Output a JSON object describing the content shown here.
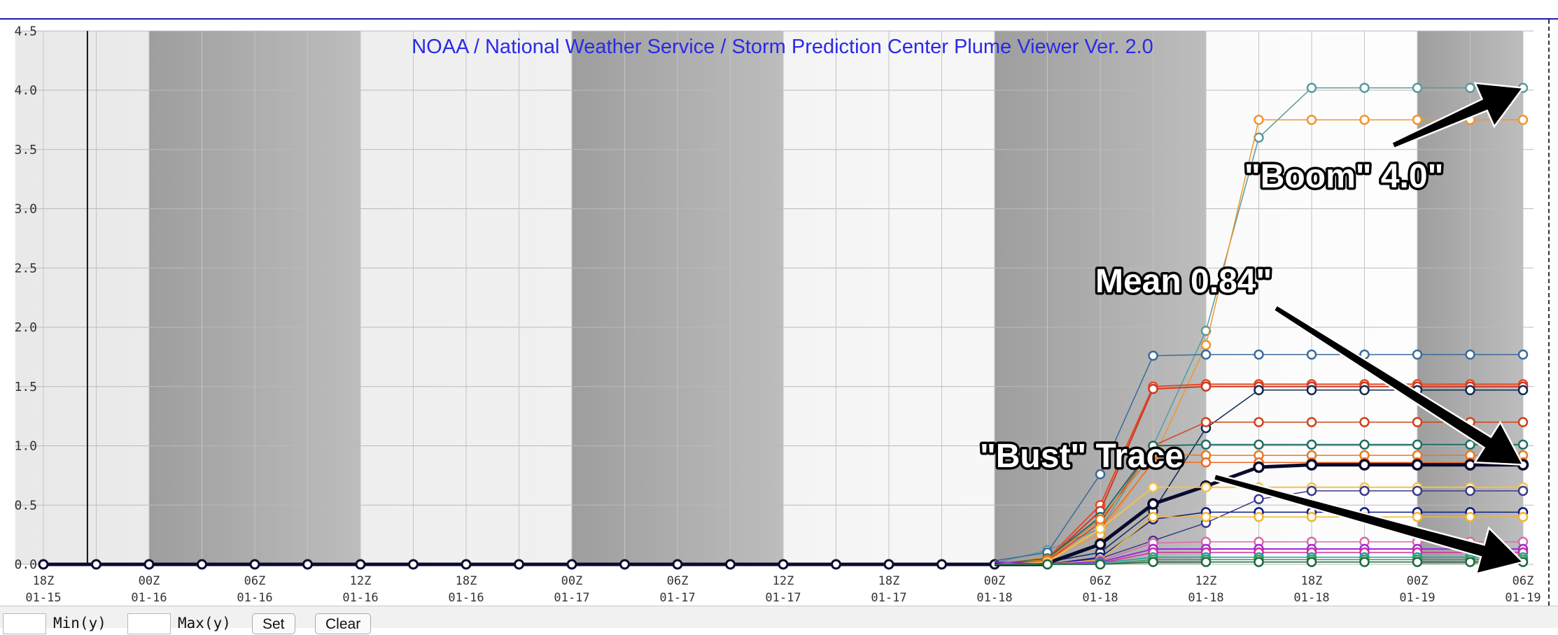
{
  "chart_data": {
    "type": "line",
    "title": "NOAA / National Weather Service / Storm Prediction Center Plume Viewer Ver. 2.0",
    "ylim": [
      0,
      4.5
    ],
    "y_ticks": [
      "0.0",
      "0.5",
      "1.0",
      "1.5",
      "2.0",
      "2.5",
      "3.0",
      "3.5",
      "4.0",
      "4.5"
    ],
    "x_ticks": [
      {
        "hour": "18Z",
        "date": "01-15"
      },
      {
        "hour": "00Z",
        "date": "01-16"
      },
      {
        "hour": "06Z",
        "date": "01-16"
      },
      {
        "hour": "12Z",
        "date": "01-16"
      },
      {
        "hour": "18Z",
        "date": "01-16"
      },
      {
        "hour": "00Z",
        "date": "01-17"
      },
      {
        "hour": "06Z",
        "date": "01-17"
      },
      {
        "hour": "12Z",
        "date": "01-17"
      },
      {
        "hour": "18Z",
        "date": "01-17"
      },
      {
        "hour": "00Z",
        "date": "01-18"
      },
      {
        "hour": "06Z",
        "date": "01-18"
      },
      {
        "hour": "12Z",
        "date": "01-18"
      },
      {
        "hour": "18Z",
        "date": "01-18"
      },
      {
        "hour": "00Z",
        "date": "01-19"
      },
      {
        "hour": "06Z",
        "date": "01-19"
      }
    ],
    "x_note": "values are hours after 18Z 01-15 (3-hourly)",
    "night_shading_hours": [
      [
        6,
        18
      ],
      [
        30,
        42
      ],
      [
        54,
        66
      ],
      [
        78,
        84
      ]
    ],
    "current_time_hour": 2.5,
    "grid": true,
    "series": [
      {
        "color": "#5a9a9a",
        "width": 1.5,
        "values": [
          0.01,
          0.12,
          0.3,
          1.0,
          1.97,
          3.6,
          4.02,
          4.02,
          4.02
        ]
      },
      {
        "color": "#f0962e",
        "width": 1.5,
        "values": [
          0.0,
          0.06,
          0.25,
          0.88,
          1.85,
          3.75,
          3.75,
          3.75,
          3.75
        ]
      },
      {
        "color": "#3a6a9c",
        "width": 1.5,
        "values": [
          0.03,
          0.1,
          0.76,
          1.76,
          1.77,
          1.77,
          1.77,
          1.77,
          1.77
        ]
      },
      {
        "color": "#e84a1e",
        "width": 2,
        "values": [
          0.0,
          0.05,
          0.5,
          1.5,
          1.52,
          1.52,
          1.52,
          1.52,
          1.52
        ]
      },
      {
        "color": "#c93a2a",
        "width": 2,
        "values": [
          0.0,
          0.04,
          0.45,
          1.48,
          1.5,
          1.5,
          1.5,
          1.5,
          1.5
        ]
      },
      {
        "color": "#102a55",
        "width": 1.5,
        "values": [
          0.0,
          0.02,
          0.1,
          0.45,
          1.15,
          1.47,
          1.47,
          1.47,
          1.47
        ]
      },
      {
        "color": "#d1401a",
        "width": 1.5,
        "values": [
          0.0,
          0.03,
          0.35,
          1.0,
          1.2,
          1.2,
          1.2,
          1.2,
          1.2
        ]
      },
      {
        "color": "#1f6e66",
        "width": 2,
        "values": [
          0.0,
          0.05,
          0.4,
          1.0,
          1.01,
          1.01,
          1.01,
          1.01,
          1.01
        ]
      },
      {
        "color": "#e87a22",
        "width": 1.5,
        "values": [
          0.0,
          0.04,
          0.38,
          0.93,
          0.92,
          0.92,
          0.92,
          0.92,
          0.92
        ]
      },
      {
        "color": "#f06a20",
        "width": 1.5,
        "values": [
          0.0,
          0.03,
          0.3,
          0.86,
          0.86,
          0.86,
          0.86,
          0.86,
          0.86
        ]
      },
      {
        "color": "#0a0a2e",
        "width": 5,
        "values": [
          0.0,
          0.01,
          0.17,
          0.51,
          0.66,
          0.82,
          0.84,
          0.84,
          0.84
        ]
      },
      {
        "color": "#f5c24a",
        "width": 2,
        "values": [
          0.0,
          0.02,
          0.3,
          0.65,
          0.65,
          0.65,
          0.65,
          0.65,
          0.65
        ]
      },
      {
        "color": "#3b3a8a",
        "width": 1.5,
        "values": [
          0.0,
          0.0,
          0.05,
          0.2,
          0.35,
          0.55,
          0.62,
          0.62,
          0.62
        ]
      },
      {
        "color": "#0e1a8a",
        "width": 1.5,
        "values": [
          0.0,
          0.0,
          0.06,
          0.38,
          0.44,
          0.44,
          0.44,
          0.44,
          0.44
        ]
      },
      {
        "color": "#f3b52a",
        "width": 1.5,
        "values": [
          0.0,
          0.0,
          0.04,
          0.4,
          0.4,
          0.4,
          0.4,
          0.4,
          0.4
        ]
      },
      {
        "color": "#d86aa8",
        "width": 1.5,
        "values": [
          0.0,
          0.0,
          0.03,
          0.18,
          0.19,
          0.19,
          0.19,
          0.19,
          0.19
        ]
      },
      {
        "color": "#9a2bd6",
        "width": 2,
        "values": [
          0.02,
          0.0,
          0.02,
          0.13,
          0.13,
          0.13,
          0.13,
          0.13,
          0.13
        ]
      },
      {
        "color": "#d42a9a",
        "width": 1.5,
        "values": [
          0.0,
          0.0,
          0.01,
          0.1,
          0.1,
          0.1,
          0.1,
          0.1,
          0.1
        ]
      },
      {
        "color": "#19a3a3",
        "width": 1.5,
        "values": [
          0.0,
          0.0,
          0.01,
          0.06,
          0.06,
          0.06,
          0.06,
          0.06,
          0.06
        ]
      },
      {
        "color": "#3a9a5a",
        "width": 1.5,
        "values": [
          0.0,
          0.0,
          0.0,
          0.04,
          0.04,
          0.04,
          0.04,
          0.04,
          0.04
        ]
      },
      {
        "color": "#1a6a3a",
        "width": 1.5,
        "values": [
          0.0,
          0.0,
          0.0,
          0.02,
          0.02,
          0.02,
          0.02,
          0.02,
          0.02
        ]
      }
    ],
    "series_start_hours": [
      57,
      60,
      63,
      66,
      69,
      72,
      75,
      78,
      81,
      84
    ],
    "annotations": [
      {
        "text": "\"Boom\" 4.0\"",
        "target_hour": 84,
        "target_value": 4.02
      },
      {
        "text": "Mean 0.84\"",
        "target_hour": 84,
        "target_value": 0.84
      },
      {
        "text": "\"Bust\" Trace",
        "target_hour": 84,
        "target_value": 0.02
      }
    ]
  },
  "controls": {
    "min_label": "Min(y)",
    "max_label": "Max(y)",
    "set_label": "Set",
    "clear_label": "Clear"
  }
}
